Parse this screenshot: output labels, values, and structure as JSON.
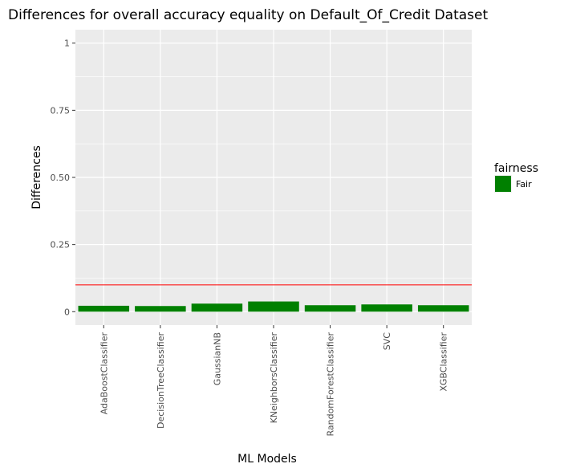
{
  "chart_data": {
    "type": "bar",
    "title": "Differences for overall accuracy equality on Default_Of_Credit Dataset",
    "xlabel": "ML Models",
    "ylabel": "Differences",
    "categories": [
      "AdaBoostClassifier",
      "DecisionTreeClassifier",
      "GaussianNB",
      "KNeighborsClassifier",
      "RandomForestClassifier",
      "SVC",
      "XGBClassifier"
    ],
    "values": [
      0.022,
      0.021,
      0.03,
      0.038,
      0.024,
      0.027,
      0.024
    ],
    "fairness": [
      "Fair",
      "Fair",
      "Fair",
      "Fair",
      "Fair",
      "Fair",
      "Fair"
    ],
    "ylim": [
      -0.05,
      1.05
    ],
    "yticks": [
      0,
      0.25,
      0.5,
      0.75,
      1
    ],
    "ytick_labels": [
      "0",
      "0.25",
      "0.50",
      "0.75",
      "1"
    ],
    "threshold": 0.1,
    "grid": true,
    "legend": {
      "title": "fairness",
      "placement": "right",
      "entries": [
        {
          "label": "Fair",
          "color": "#008000"
        }
      ]
    },
    "colors": {
      "bar": "#008000",
      "threshold_line": "#ff0000",
      "panel_bg": "#ebebeb",
      "grid": "#ffffff"
    }
  }
}
